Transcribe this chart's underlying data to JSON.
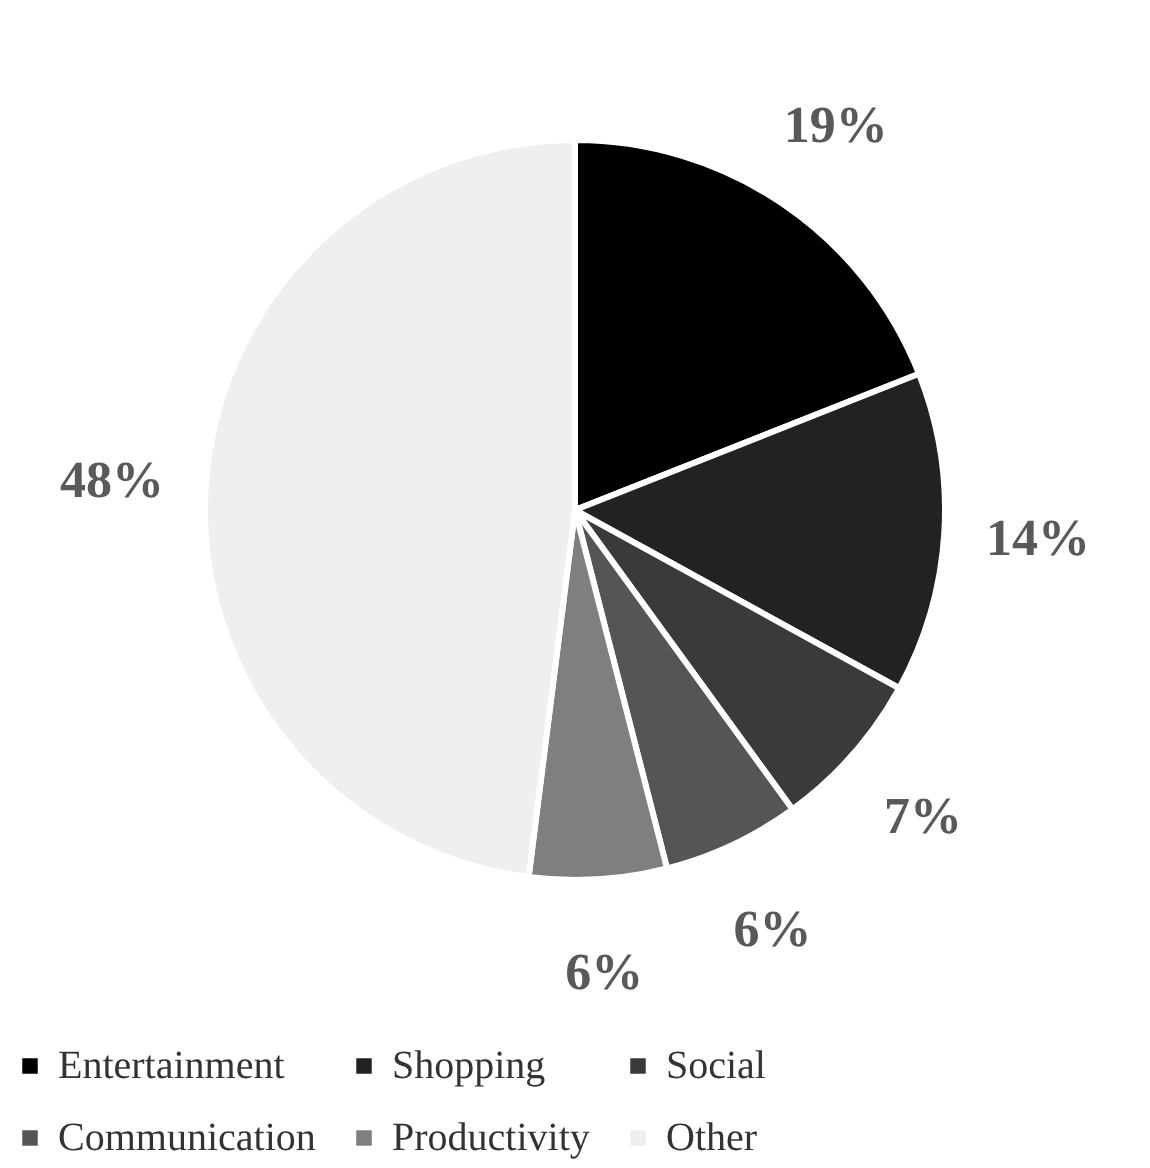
{
  "chart_data": {
    "type": "pie",
    "categories": [
      "Entertainment",
      "Shopping",
      "Social",
      "Communication",
      "Productivity",
      "Other"
    ],
    "values": [
      19,
      14,
      7,
      6,
      6,
      48
    ],
    "colors": [
      "#000000",
      "#222222",
      "#3a3a3a",
      "#555555",
      "#7f7f7f",
      "#efefef"
    ],
    "value_labels": [
      "19%",
      "14%",
      "7%",
      "6%",
      "6%",
      "48%"
    ],
    "legend": "bottom"
  }
}
